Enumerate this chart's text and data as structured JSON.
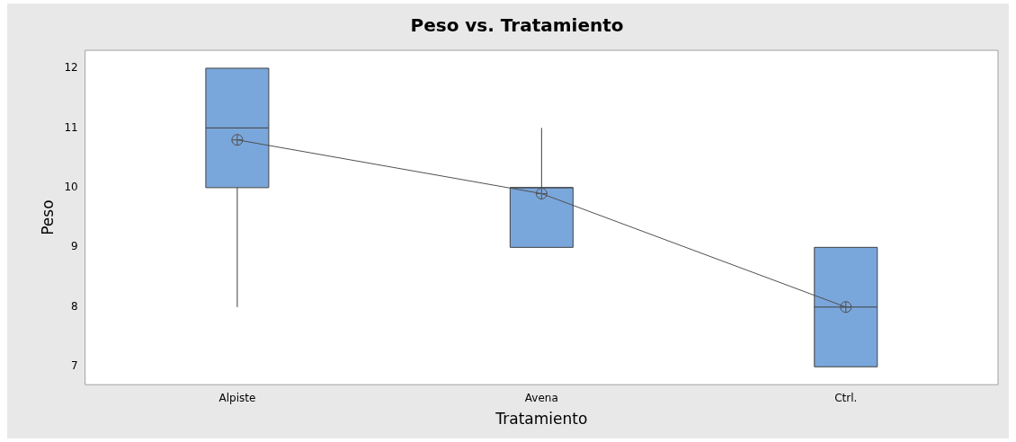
{
  "chart_data": {
    "type": "box",
    "title": "Peso vs. Tratamiento",
    "xlabel": "Tratamiento",
    "ylabel": "Peso",
    "categories": [
      "Alpiste",
      "Avena",
      "Ctrl."
    ],
    "color": "#7aa7db",
    "boxes": [
      {
        "low": 8,
        "q1": 10,
        "median": 11,
        "q3": 12,
        "high": 12
      },
      {
        "low": 9,
        "q1": 9,
        "median": 10,
        "q3": 10,
        "high": 11
      },
      {
        "low": 7,
        "q1": 7,
        "median": 8,
        "q3": 9,
        "high": 9
      }
    ],
    "series": [
      {
        "type": "line",
        "color": "#505050",
        "values": [
          10.8,
          9.9,
          8.0
        ]
      }
    ],
    "marker": "circle",
    "grid": false,
    "legend": false,
    "ylim": [
      6.7,
      12.3
    ],
    "yticks": [
      7,
      8,
      9,
      10,
      11,
      12
    ]
  }
}
